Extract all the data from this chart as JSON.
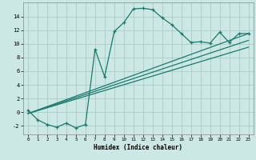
{
  "xlabel": "Humidex (Indice chaleur)",
  "background_color": "#cce8e4",
  "grid_color": "#aaccca",
  "line_color": "#1a7a6e",
  "xlim": [
    -0.5,
    23.5
  ],
  "ylim": [
    -3.2,
    16.0
  ],
  "xticks": [
    0,
    1,
    2,
    3,
    4,
    5,
    6,
    7,
    8,
    9,
    10,
    11,
    12,
    13,
    14,
    15,
    16,
    17,
    18,
    19,
    20,
    21,
    22,
    23
  ],
  "yticks": [
    -2,
    0,
    2,
    4,
    6,
    8,
    10,
    12,
    14
  ],
  "curve1_x": [
    0,
    1,
    2,
    3,
    4,
    5,
    6,
    7,
    8,
    9,
    10,
    11,
    12,
    13,
    14,
    15,
    16,
    17,
    18,
    19,
    20,
    21,
    22,
    23
  ],
  "curve1_y": [
    0.3,
    -1.1,
    -1.8,
    -2.2,
    -1.6,
    -2.3,
    -1.8,
    9.2,
    5.2,
    11.8,
    13.1,
    15.1,
    15.2,
    15.0,
    13.8,
    12.8,
    11.5,
    10.2,
    10.3,
    10.1,
    11.7,
    10.2,
    11.5,
    11.5
  ],
  "curve2_x": [
    0,
    23
  ],
  "curve2_y": [
    -0.2,
    10.5
  ],
  "curve3_x": [
    0,
    23
  ],
  "curve3_y": [
    -0.2,
    11.5
  ],
  "curve4_x": [
    0,
    23
  ],
  "curve4_y": [
    -0.2,
    9.5
  ]
}
